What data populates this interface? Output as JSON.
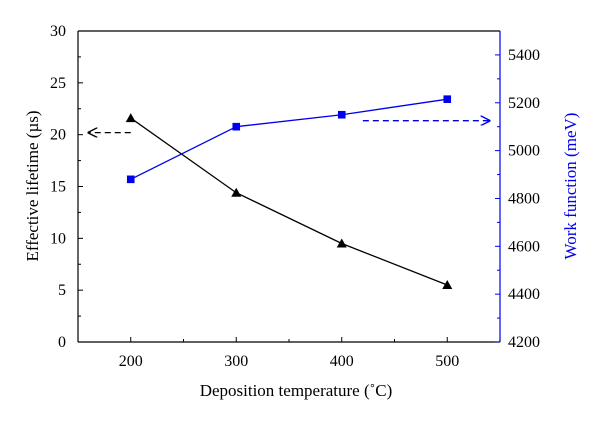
{
  "chart_data": {
    "type": "line",
    "xlabel": "Deposition temperature (˚C)",
    "ylabel_left": "Effective lifetime (µs)",
    "ylabel_right": "Work function (meV)",
    "x_ticks": [
      200,
      300,
      400,
      500
    ],
    "xlim": [
      150,
      550
    ],
    "ylim_left": [
      0,
      30
    ],
    "y_ticks_left": [
      0,
      5,
      10,
      15,
      20,
      25,
      30
    ],
    "ylim_right": [
      4200,
      5500
    ],
    "y_ticks_right": [
      4200,
      4400,
      4600,
      4800,
      5000,
      5200,
      5400
    ],
    "grid": false,
    "legend": "none",
    "series": [
      {
        "axis": "left",
        "marker": "triangle",
        "color": "#000000",
        "x": [
          200,
          300,
          400,
          500
        ],
        "values": [
          21.6,
          14.4,
          9.5,
          5.5
        ]
      },
      {
        "axis": "right",
        "marker": "square",
        "color": "#0000ee",
        "x": [
          200,
          300,
          400,
          500
        ],
        "values": [
          4880,
          5100,
          5150,
          5215
        ]
      }
    ],
    "annotations": [
      {
        "type": "dashed-arrow",
        "direction": "left",
        "axis": "left",
        "color": "#000000",
        "x_from": 200,
        "x_to": 160,
        "y": 20.2
      },
      {
        "type": "dashed-arrow",
        "direction": "right",
        "axis": "right",
        "color": "#0000ee",
        "x_from": 420,
        "x_to": 540,
        "y": 5125
      }
    ]
  }
}
